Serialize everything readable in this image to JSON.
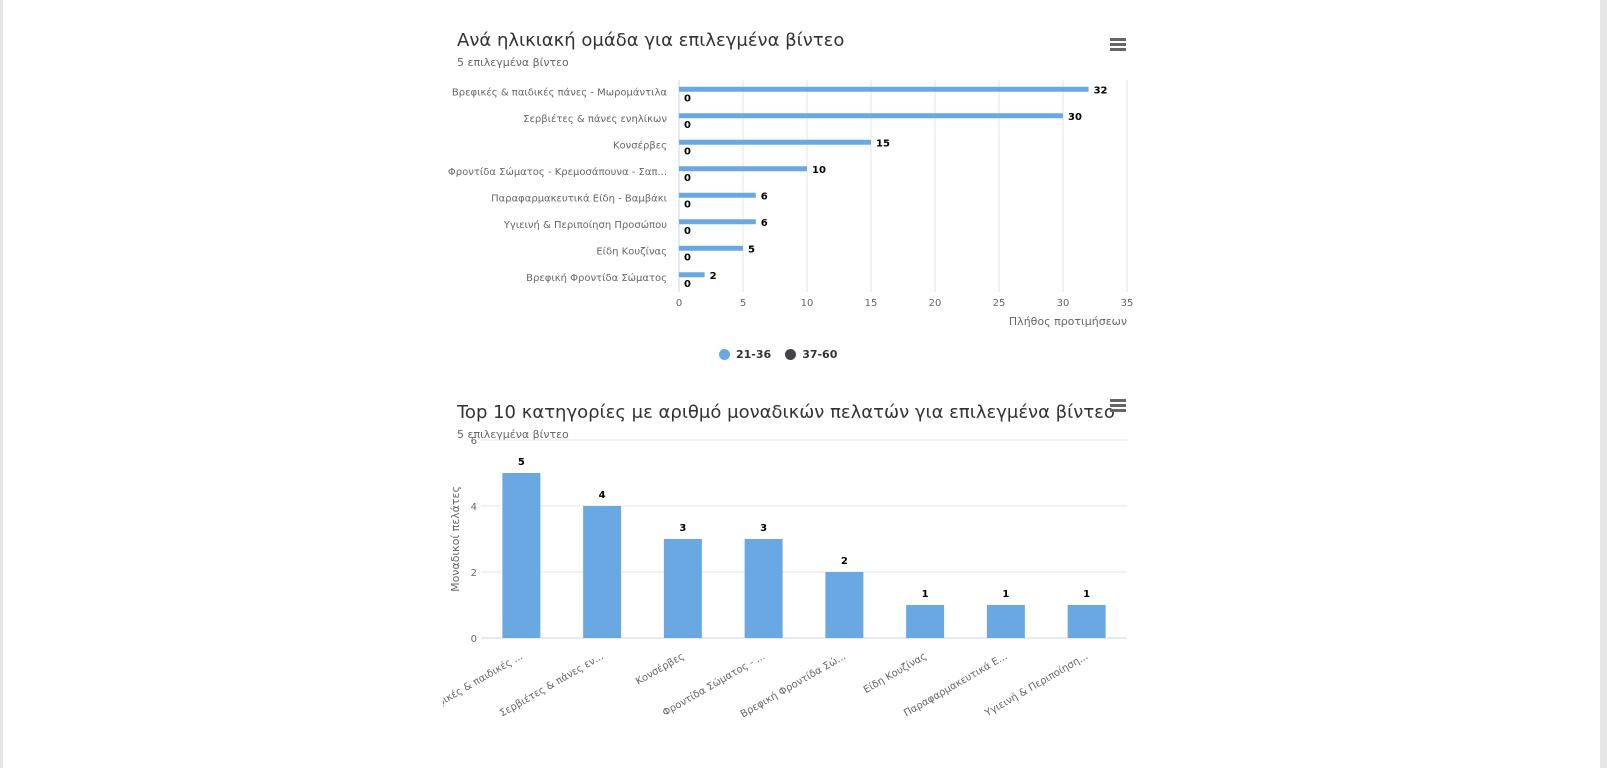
{
  "charts": [
    {
      "title": "Ανά ηλικιακή ομάδα για επιλεγμένα βίντεο",
      "subtitle": "5 επιλεγμένα βίντεο",
      "menu_icon": "hamburger-menu-icon",
      "chart_data": {
        "type": "bar",
        "orientation": "horizontal",
        "categories": [
          "Βρεφικές & παιδικές πάνες - Μωρομάντιλα",
          "Σερβιέτες & πάνες ενηλίκων",
          "Κονσέρβες",
          "Φροντίδα Σώματος - Κρεμοσάπουνα - Σαπ...",
          "Παραφαρμακευτικά Είδη - Βαμβάκι",
          "Υγιεινή & Περιποίηση Προσώπου",
          "Είδη Κουζίνας",
          "Βρεφική Φροντίδα Σώματος"
        ],
        "series": [
          {
            "name": "21-36",
            "color": "#6aa8e4",
            "values": [
              32,
              30,
              15,
              10,
              6,
              6,
              5,
              2
            ]
          },
          {
            "name": "37-60",
            "color": "#434348",
            "values": [
              0,
              0,
              0,
              0,
              0,
              0,
              0,
              0
            ]
          }
        ],
        "xlabel": "Πλήθος προτιμήσεων",
        "xlim": [
          0,
          35
        ],
        "xticks": [
          "0",
          "5",
          "10",
          "15",
          "20",
          "25",
          "30",
          "35"
        ],
        "grid": true,
        "legend_position": "bottom-center"
      }
    },
    {
      "title": "Top 10 κατηγορίες με αριθμό μοναδικών πελατών για επιλεγμένα βίντεο",
      "subtitle": "5 επιλεγμένα βίντεο",
      "menu_icon": "hamburger-menu-icon",
      "chart_data": {
        "type": "bar",
        "orientation": "vertical",
        "categories": [
          "Βρεφικές & παιδικές ...",
          "Σερβιέτες & πάνες εν...",
          "Κονσέρβες",
          "Φροντίδα Σώματος - ...",
          "Βρεφική Φροντίδα Σώ...",
          "Είδη Κουζίνας",
          "Παραφαρμακευτικά Ε...",
          "Υγιεινή & Περιποίηση..."
        ],
        "series": [
          {
            "color": "#6aa8e4",
            "values": [
              5,
              4,
              3,
              3,
              2,
              1,
              1,
              1
            ]
          }
        ],
        "ylabel": "Μοναδικοί πελάτες",
        "ylim": [
          0,
          6
        ],
        "yticks": [
          "0",
          "2",
          "4",
          "6"
        ],
        "grid": true
      }
    }
  ]
}
